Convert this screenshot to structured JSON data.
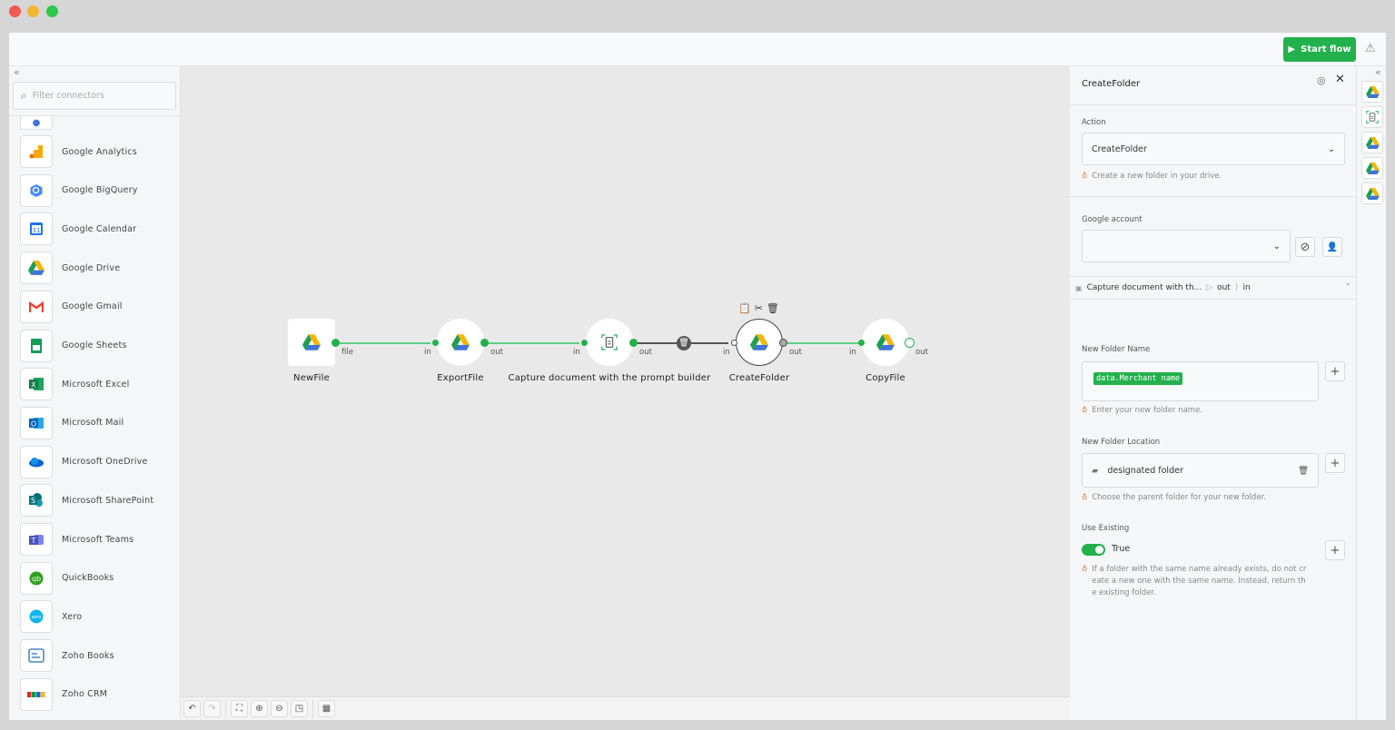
{
  "window": {
    "dots": [
      "#ee5b52",
      "#f5b531",
      "#2ec84a"
    ]
  },
  "header": {
    "start_flow_label": "Start flow",
    "accent": "#22b14c"
  },
  "sidebar": {
    "search_placeholder": "Filter connectors",
    "items": [
      {
        "label": "Google Analytics",
        "icon": "google-analytics-icon"
      },
      {
        "label": "Google BigQuery",
        "icon": "google-bigquery-icon"
      },
      {
        "label": "Google Calendar",
        "icon": "google-calendar-icon"
      },
      {
        "label": "Google Drive",
        "icon": "google-drive-icon"
      },
      {
        "label": "Google Gmail",
        "icon": "gmail-icon"
      },
      {
        "label": "Google Sheets",
        "icon": "google-sheets-icon"
      },
      {
        "label": "Microsoft Excel",
        "icon": "excel-icon"
      },
      {
        "label": "Microsoft Mail",
        "icon": "outlook-icon"
      },
      {
        "label": "Microsoft OneDrive",
        "icon": "onedrive-icon"
      },
      {
        "label": "Microsoft SharePoint",
        "icon": "sharepoint-icon"
      },
      {
        "label": "Microsoft Teams",
        "icon": "teams-icon"
      },
      {
        "label": "QuickBooks",
        "icon": "quickbooks-icon"
      },
      {
        "label": "Xero",
        "icon": "xero-icon"
      },
      {
        "label": "Zoho Books",
        "icon": "zoho-books-icon"
      },
      {
        "label": "Zoho CRM",
        "icon": "zoho-crm-icon"
      }
    ]
  },
  "flow": {
    "nodes": [
      {
        "label": "NewFile",
        "out": "file"
      },
      {
        "label": "ExportFile",
        "in": "in",
        "out": "out"
      },
      {
        "label": "Capture document with the prompt builder",
        "in": "in",
        "out": "out"
      },
      {
        "label": "CreateFolder",
        "in": "in",
        "out": "out",
        "selected": true
      },
      {
        "label": "CopyFile",
        "in": "in",
        "out": "out"
      }
    ]
  },
  "panel": {
    "title": "CreateFolder",
    "action_label": "Action",
    "action_value": "CreateFolder",
    "action_hint": "Create a new folder in your drive.",
    "account_label": "Google account",
    "account_value": "",
    "mapping": {
      "source": "Capture document with th...",
      "out": "out",
      "in": "in"
    },
    "folder_name_label": "New Folder Name",
    "folder_name_token": "data.Merchant name",
    "folder_name_hint": "Enter your new folder name.",
    "location_label": "New Folder Location",
    "location_value": "designated folder",
    "location_hint": "Choose the parent folder for your new folder.",
    "existing_label": "Use Existing",
    "existing_value": "True",
    "existing_on": true,
    "existing_hint": "If a folder with the same name already exists, do not create a new one with the same name. Instead, return the existing folder."
  }
}
